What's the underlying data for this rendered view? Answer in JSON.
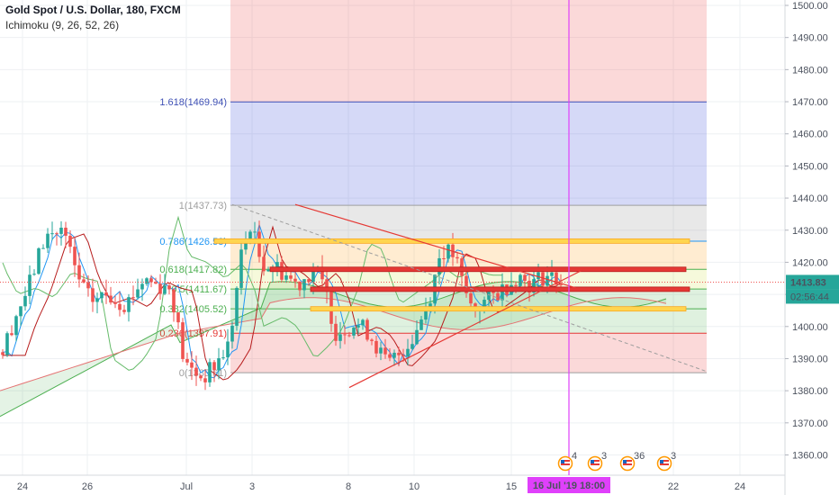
{
  "header": {
    "symbol": "Gold Spot / U.S. Dollar, 180, FXCM",
    "indicator": "Ichimoku (9, 26, 52, 26)"
  },
  "price_badge": {
    "price": "1413.83",
    "countdown": "02:56:44",
    "color": "#26a69a"
  },
  "crosshair": {
    "label": "16 Jul '19  18:00",
    "color": "#e040fb"
  },
  "colors": {
    "up": "#26a69a",
    "down": "#ef5350",
    "tenkan": "#2196f3",
    "kijun": "#b71c1c",
    "span_a": "#4caf50",
    "span_b": "#e57373",
    "chikou": "#66bb6a",
    "fib_red": "rgba(239,83,80,0.22)",
    "fib_blue": "rgba(63,81,220,0.22)",
    "fib_grey": "rgba(150,150,150,0.22)",
    "fib_orange": "rgba(255,152,0,0.18)",
    "fib_yellow": "rgba(205,220,57,0.18)",
    "fib_green": "rgba(76,175,80,0.18)",
    "zone_yellow": "#ffd54f",
    "zone_red": "#e53935"
  },
  "events": [
    {
      "icon": "us-flag-icon",
      "count": "4"
    },
    {
      "icon": "us-flag-icon",
      "count": "3"
    },
    {
      "icon": "us-flag-icon",
      "count": "36"
    },
    {
      "icon": "us-flag-icon",
      "count": "3"
    }
  ],
  "chart_data": {
    "type": "candlestick",
    "ylim": [
      1355,
      1505
    ],
    "y_ticks": [
      1360,
      1370,
      1380,
      1390,
      1400,
      1410,
      1420,
      1430,
      1440,
      1450,
      1460,
      1470,
      1480,
      1490,
      1500
    ],
    "x_ticks": [
      "24",
      "26",
      "Jul",
      "3",
      "8",
      "10",
      "15",
      "22",
      "24"
    ],
    "fib_levels": [
      {
        "ratio": "0",
        "price": 1385.61,
        "label": "0(1385.61)"
      },
      {
        "ratio": "0.236",
        "price": 1397.91,
        "label": "0.236(1397.91)"
      },
      {
        "ratio": "0.382",
        "price": 1405.52,
        "label": "0.382(1405.52)"
      },
      {
        "ratio": "0.5",
        "price": 1411.67,
        "label": "0.5(1411.67)"
      },
      {
        "ratio": "0.618",
        "price": 1417.82,
        "label": "0.618(1417.82)"
      },
      {
        "ratio": "0.786",
        "price": 1426.58,
        "label": "0.786(1426.58)"
      },
      {
        "ratio": "1",
        "price": 1437.73,
        "label": "1(1437.73)"
      },
      {
        "ratio": "1.618",
        "price": 1469.94,
        "label": "1.618(1469.94)"
      }
    ],
    "zones": [
      {
        "color": "yellow",
        "price": 1426.6
      },
      {
        "color": "red",
        "price": 1417.8
      },
      {
        "color": "red",
        "price": 1411.6
      },
      {
        "color": "yellow",
        "price": 1405.5
      }
    ],
    "last_price": 1413.83,
    "grid": true
  }
}
